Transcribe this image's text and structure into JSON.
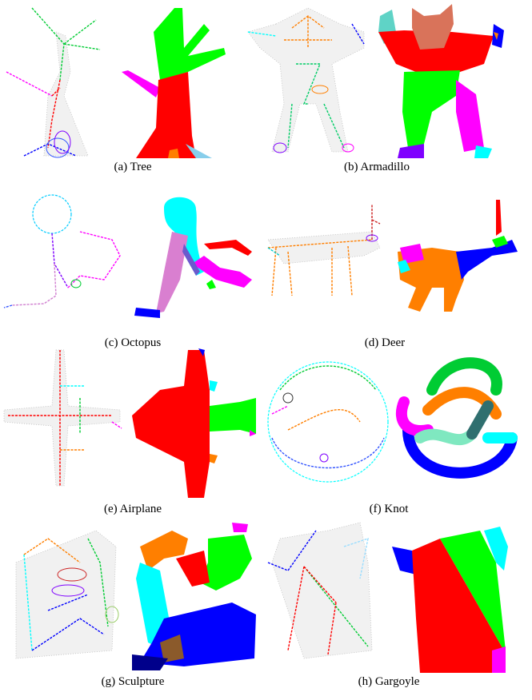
{
  "figure": {
    "panels": [
      {
        "label": "(a) Tree"
      },
      {
        "label": "(b) Armadillo"
      },
      {
        "label": "(c) Octopus"
      },
      {
        "label": "(d) Deer"
      },
      {
        "label": "(e) Airplane"
      },
      {
        "label": "(f) Knot"
      },
      {
        "label": "(g) Sculpture"
      },
      {
        "label": "(h) Gargoyle"
      }
    ],
    "colors": {
      "red": "#ff0000",
      "green": "#00ff00",
      "blue": "#0000ff",
      "cyan": "#00ffff",
      "magenta": "#ff00ff",
      "orange": "#ff7f00",
      "brown": "#8b5a2b",
      "purple": "#7f00ff",
      "pink": "#d97fd0",
      "teal": "#7fd6c2",
      "skyblue": "#87ceeb"
    }
  }
}
